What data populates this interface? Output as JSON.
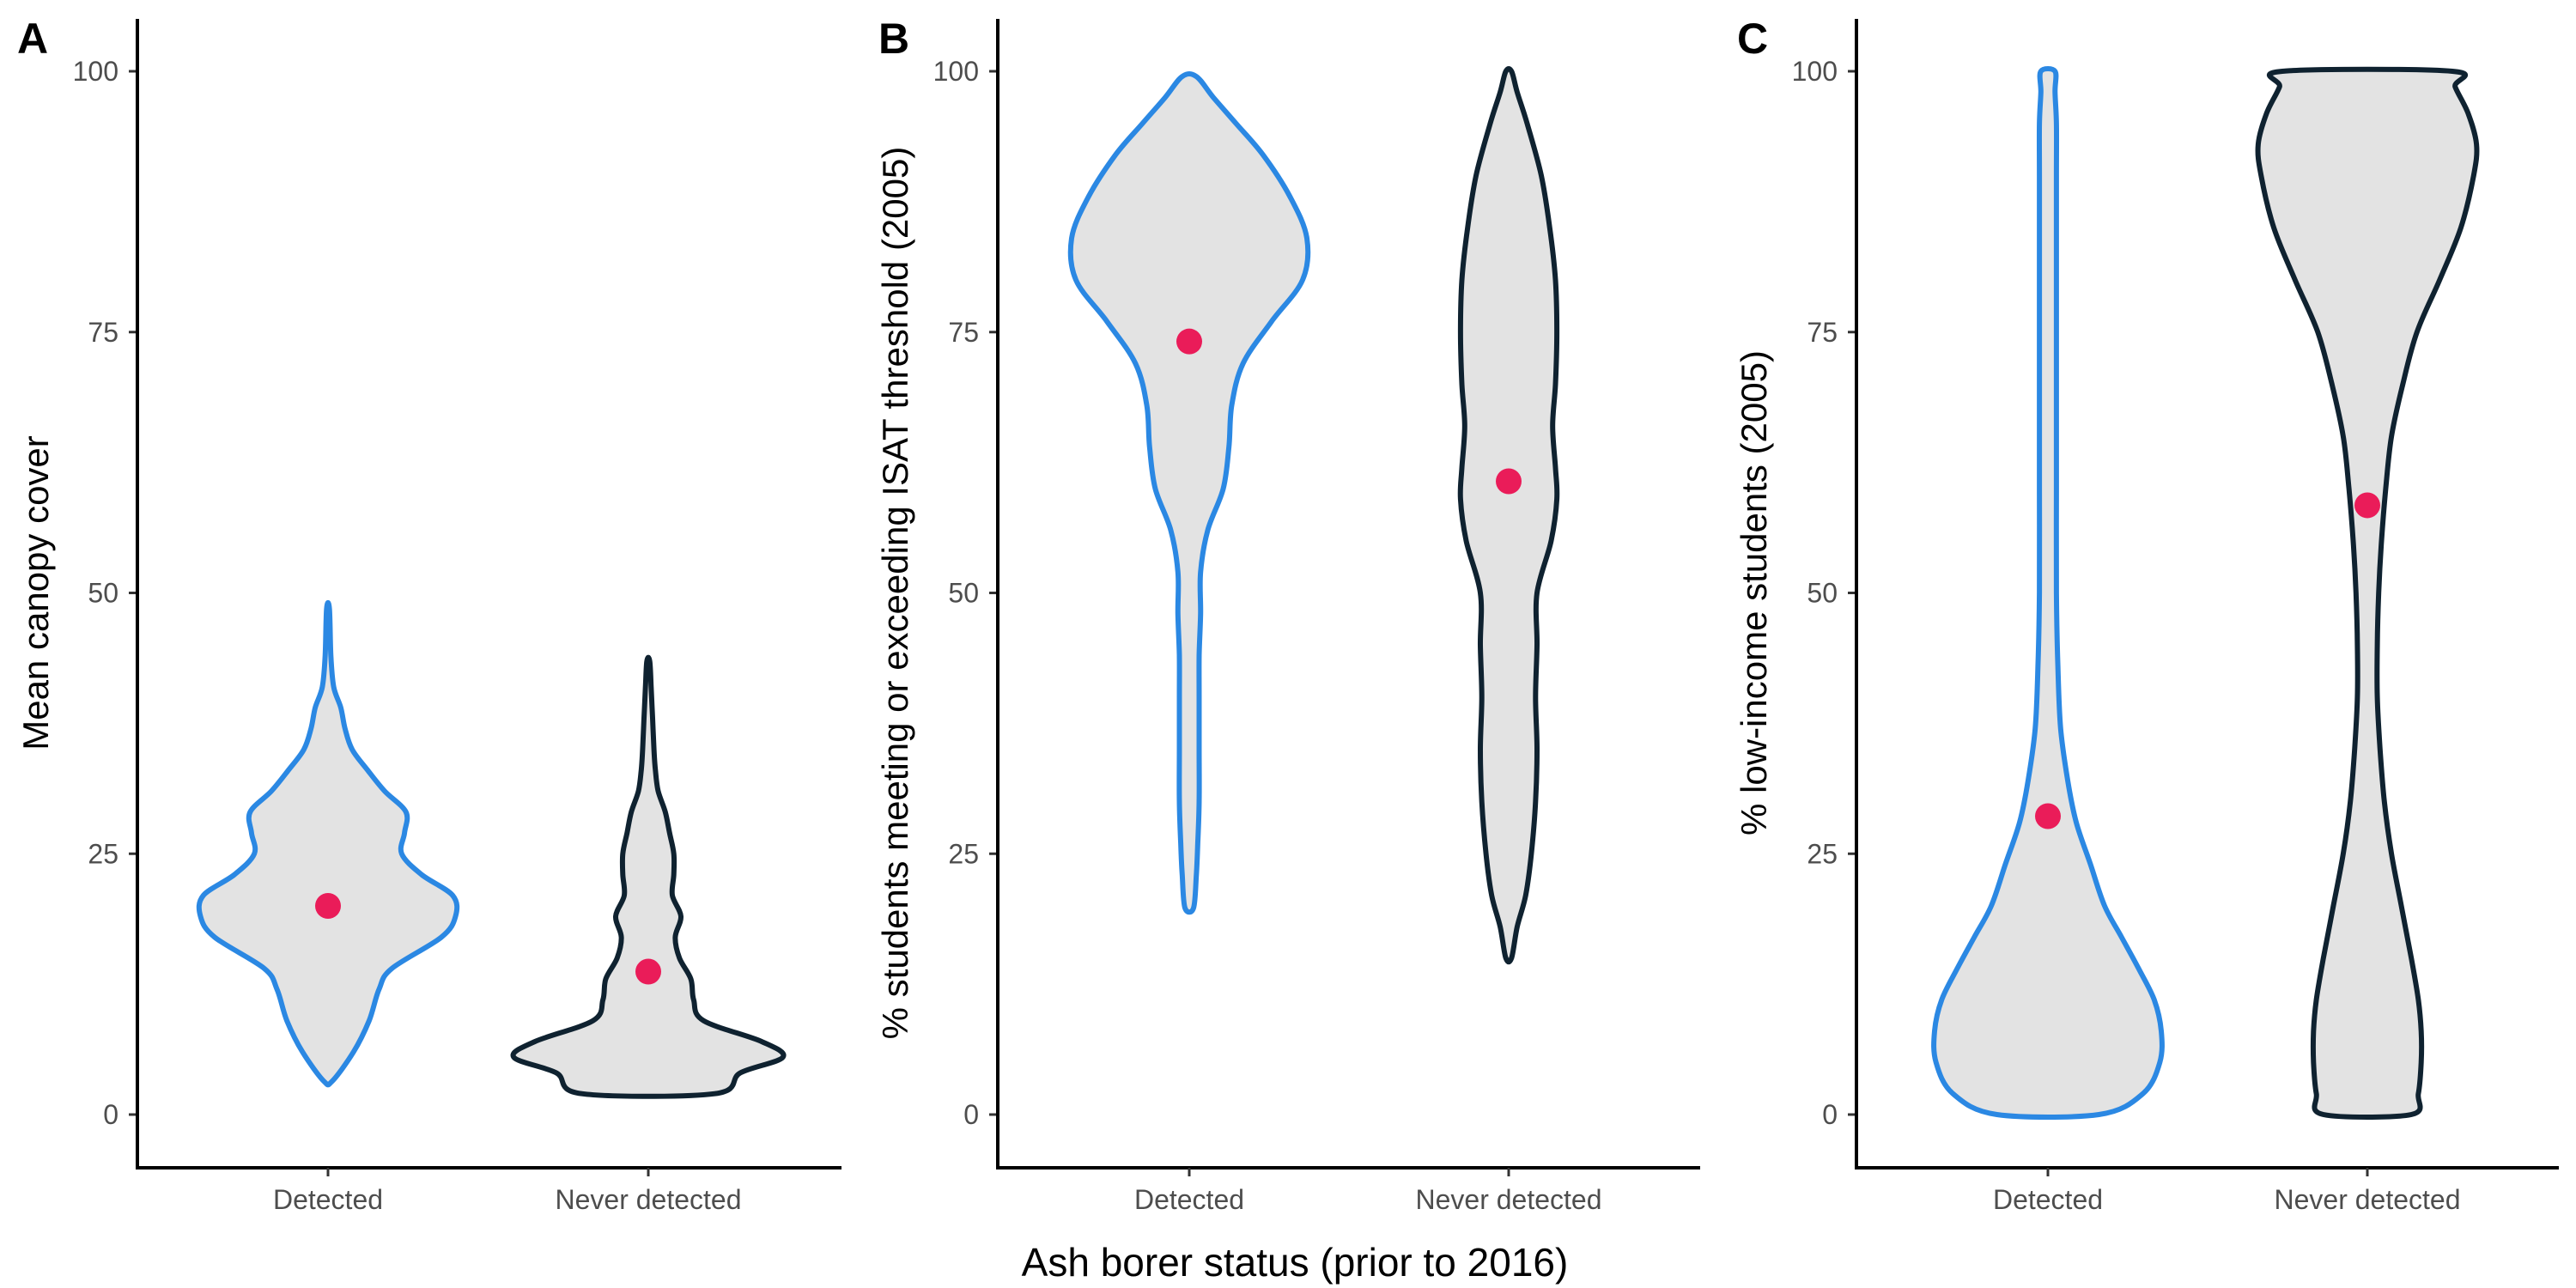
{
  "figure": {
    "shared_xlabel": "Ash borer status (prior to 2016)",
    "colors": {
      "detected": "#2b88e3",
      "never_detected": "#0f2230",
      "violin_fill": "#e3e3e3",
      "mean_point": "#ea1c59"
    }
  },
  "chart_data": [
    {
      "type": "violin",
      "panel": "A",
      "title": "",
      "xlabel": "",
      "ylabel": "Mean canopy cover",
      "categories": [
        "Detected",
        "Never detected"
      ],
      "ylim": [
        -5,
        105
      ],
      "yticks": [
        0,
        25,
        50,
        75,
        100
      ],
      "grid": false,
      "legend": "none",
      "series": [
        {
          "category": "Detected",
          "mean": 20,
          "y_min": 3.2,
          "y_max": 48.5,
          "density_profile": [
            [
              3.2,
              0.03
            ],
            [
              6,
              0.18
            ],
            [
              9,
              0.29
            ],
            [
              12,
              0.36
            ],
            [
              14,
              0.45
            ],
            [
              17,
              0.8
            ],
            [
              19,
              0.9
            ],
            [
              21,
              0.88
            ],
            [
              23,
              0.66
            ],
            [
              25,
              0.52
            ],
            [
              27,
              0.54
            ],
            [
              29,
              0.55
            ],
            [
              31,
              0.4
            ],
            [
              33,
              0.28
            ],
            [
              35,
              0.17
            ],
            [
              37,
              0.12
            ],
            [
              39,
              0.09
            ],
            [
              41,
              0.04
            ],
            [
              44,
              0.02
            ],
            [
              48.5,
              0.01
            ]
          ]
        },
        {
          "category": "Never detected",
          "mean": 13.7,
          "y_min": 2,
          "y_max": 43.5,
          "density_profile": [
            [
              2,
              0.47
            ],
            [
              4,
              0.65
            ],
            [
              5.5,
              0.95
            ],
            [
              7,
              0.8
            ],
            [
              9,
              0.39
            ],
            [
              11,
              0.32
            ],
            [
              13,
              0.3
            ],
            [
              15,
              0.22
            ],
            [
              17,
              0.19
            ],
            [
              19,
              0.23
            ],
            [
              21,
              0.17
            ],
            [
              23,
              0.18
            ],
            [
              25,
              0.18
            ],
            [
              27,
              0.15
            ],
            [
              29,
              0.12
            ],
            [
              31,
              0.07
            ],
            [
              33,
              0.05
            ],
            [
              35,
              0.04
            ],
            [
              38,
              0.03
            ],
            [
              41,
              0.02
            ],
            [
              43.5,
              0.01
            ]
          ]
        }
      ]
    },
    {
      "type": "violin",
      "panel": "B",
      "title": "",
      "xlabel": "",
      "ylabel": "% students meeting or exceeding ISAT threshold (2005)",
      "categories": [
        "Detected",
        "Never detected"
      ],
      "ylim": [
        -5,
        105
      ],
      "yticks": [
        0,
        25,
        50,
        75,
        100
      ],
      "grid": false,
      "legend": "none",
      "series": [
        {
          "category": "Detected",
          "mean": 74.1,
          "y_min": 19.8,
          "y_max": 99.5,
          "density_profile": [
            [
              19.8,
              0.03
            ],
            [
              23,
              0.05
            ],
            [
              26,
              0.06
            ],
            [
              30,
              0.07
            ],
            [
              35,
              0.07
            ],
            [
              40,
              0.07
            ],
            [
              44,
              0.07
            ],
            [
              48,
              0.08
            ],
            [
              52,
              0.08
            ],
            [
              56,
              0.13
            ],
            [
              60,
              0.24
            ],
            [
              64,
              0.28
            ],
            [
              68,
              0.3
            ],
            [
              72,
              0.38
            ],
            [
              76,
              0.58
            ],
            [
              80,
              0.8
            ],
            [
              84,
              0.83
            ],
            [
              88,
              0.71
            ],
            [
              92,
              0.52
            ],
            [
              95,
              0.33
            ],
            [
              97.5,
              0.17
            ],
            [
              99.5,
              0.05
            ]
          ]
        },
        {
          "category": "Never detected",
          "mean": 60.7,
          "y_min": 15,
          "y_max": 100,
          "density_profile": [
            [
              15,
              0.02
            ],
            [
              18,
              0.06
            ],
            [
              21,
              0.12
            ],
            [
              25,
              0.16
            ],
            [
              30,
              0.19
            ],
            [
              35,
              0.2
            ],
            [
              40,
              0.19
            ],
            [
              45,
              0.2
            ],
            [
              50,
              0.2
            ],
            [
              55,
              0.3
            ],
            [
              59,
              0.34
            ],
            [
              62,
              0.33
            ],
            [
              66,
              0.31
            ],
            [
              70,
              0.33
            ],
            [
              75,
              0.34
            ],
            [
              80,
              0.33
            ],
            [
              85,
              0.29
            ],
            [
              90,
              0.23
            ],
            [
              95,
              0.13
            ],
            [
              98,
              0.06
            ],
            [
              100,
              0.02
            ]
          ]
        }
      ]
    },
    {
      "type": "violin",
      "panel": "C",
      "title": "",
      "xlabel": "",
      "ylabel": "% low-income students (2005)",
      "categories": [
        "Detected",
        "Never detected"
      ],
      "ylim": [
        -5,
        105
      ],
      "yticks": [
        0,
        25,
        50,
        75,
        100
      ],
      "grid": false,
      "legend": "none",
      "series": [
        {
          "category": "Detected",
          "mean": 28.6,
          "y_min": 0,
          "y_max": 100,
          "density_profile": [
            [
              0,
              0.36
            ],
            [
              2,
              0.67
            ],
            [
              5,
              0.79
            ],
            [
              8,
              0.8
            ],
            [
              11,
              0.75
            ],
            [
              14,
              0.64
            ],
            [
              17,
              0.52
            ],
            [
              20,
              0.4
            ],
            [
              24,
              0.3
            ],
            [
              28,
              0.2
            ],
            [
              32,
              0.14
            ],
            [
              37,
              0.09
            ],
            [
              43,
              0.07
            ],
            [
              50,
              0.06
            ],
            [
              60,
              0.06
            ],
            [
              70,
              0.06
            ],
            [
              80,
              0.06
            ],
            [
              90,
              0.06
            ],
            [
              95,
              0.06
            ],
            [
              98,
              0.05
            ],
            [
              100,
              0.05
            ]
          ]
        },
        {
          "category": "Never detected",
          "mean": 58.4,
          "y_min": 0,
          "y_max": 100,
          "density_profile": [
            [
              0,
              0.31
            ],
            [
              2,
              0.36
            ],
            [
              5,
              0.38
            ],
            [
              8,
              0.38
            ],
            [
              11,
              0.36
            ],
            [
              15,
              0.31
            ],
            [
              20,
              0.24
            ],
            [
              25,
              0.17
            ],
            [
              30,
              0.12
            ],
            [
              35,
              0.09
            ],
            [
              40,
              0.07
            ],
            [
              45,
              0.07
            ],
            [
              50,
              0.08
            ],
            [
              55,
              0.1
            ],
            [
              60,
              0.13
            ],
            [
              65,
              0.17
            ],
            [
              70,
              0.25
            ],
            [
              75,
              0.35
            ],
            [
              80,
              0.51
            ],
            [
              85,
              0.66
            ],
            [
              90,
              0.75
            ],
            [
              93,
              0.77
            ],
            [
              96,
              0.71
            ],
            [
              98.5,
              0.62
            ],
            [
              100,
              0.6
            ]
          ]
        }
      ]
    }
  ]
}
